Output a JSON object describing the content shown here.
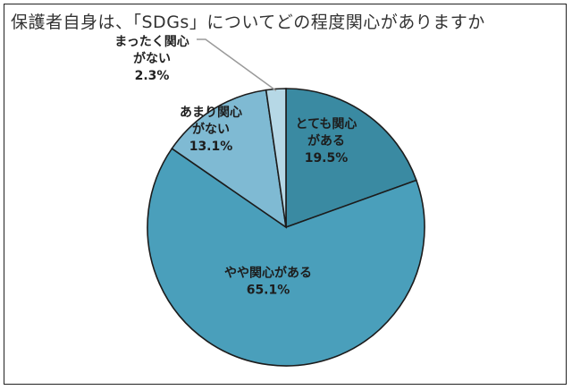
{
  "chart_data": {
    "type": "pie",
    "title": "保護者自身は、「SDGs」についてどの程度関心がありますか",
    "slices": [
      {
        "label_lines": [
          "とても関心",
          "がある"
        ],
        "value": 19.5,
        "value_label": "19.5%",
        "color": "#3a8aa2"
      },
      {
        "label_lines": [
          "やや関心がある"
        ],
        "value": 65.1,
        "value_label": "65.1%",
        "color": "#4a9fbb"
      },
      {
        "label_lines": [
          "あまり関心",
          "がない"
        ],
        "value": 13.1,
        "value_label": "13.1%",
        "color": "#7fbad3"
      },
      {
        "label_lines": [
          "まったく関心",
          "がない"
        ],
        "value": 2.3,
        "value_label": "2.3%",
        "color": "#b6d8e6"
      }
    ],
    "start": "12 o'clock",
    "direction": "clockwise",
    "border_color": "#1c1c1c"
  }
}
